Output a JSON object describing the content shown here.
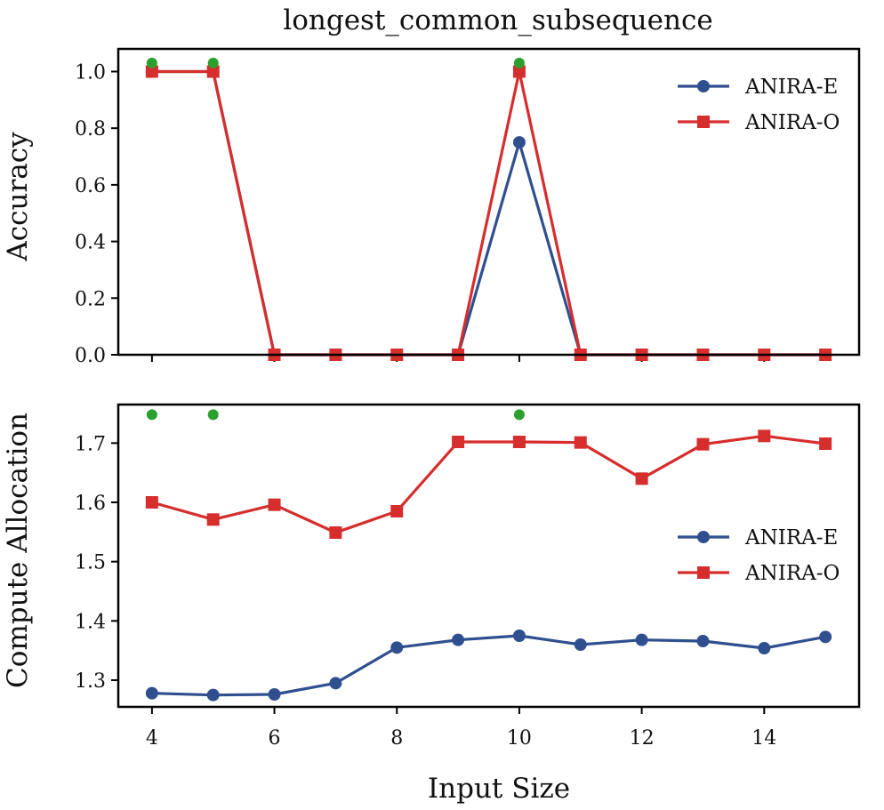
{
  "title": "longest_common_subsequence",
  "xlabel": "Input Size",
  "colors": {
    "anira_e": "#2f4f8f",
    "anira_o": "#d62d2d",
    "marker": "#2ca02c"
  },
  "chart_data": [
    {
      "type": "line",
      "title": "longest_common_subsequence",
      "xlabel": "",
      "ylabel": "Accuracy",
      "x": [
        4,
        5,
        6,
        7,
        8,
        9,
        10,
        11,
        12,
        13,
        14,
        15
      ],
      "xlim": [
        3.45,
        15.55
      ],
      "ylim": [
        0,
        1.08
      ],
      "xticks": [
        4,
        6,
        8,
        10,
        12,
        14
      ],
      "yticks": [
        0.0,
        0.2,
        0.4,
        0.6,
        0.8,
        1.0
      ],
      "ytick_labels": [
        "0.0",
        "0.2",
        "0.4",
        "0.6",
        "0.8",
        "1.0"
      ],
      "legend_loc": "top-right",
      "series": [
        {
          "name": "ANIRA-E",
          "marker": "circle",
          "values": [
            1.0,
            1.0,
            0.0,
            0.0,
            0.0,
            0.0,
            0.75,
            0.0,
            0.0,
            0.0,
            0.0,
            0.0
          ]
        },
        {
          "name": "ANIRA-O",
          "marker": "square",
          "values": [
            1.0,
            1.0,
            0.0,
            0.0,
            0.0,
            0.0,
            1.0,
            0.0,
            0.0,
            0.0,
            0.0,
            0.0
          ]
        }
      ],
      "highlight_points": {
        "x": [
          4,
          5,
          10
        ],
        "y": 1.03
      }
    },
    {
      "type": "line",
      "title": "",
      "xlabel": "Input Size",
      "ylabel": "Compute Allocation",
      "x": [
        4,
        5,
        6,
        7,
        8,
        9,
        10,
        11,
        12,
        13,
        14,
        15
      ],
      "xlim": [
        3.45,
        15.55
      ],
      "ylim": [
        1.255,
        1.765
      ],
      "xticks": [
        4,
        6,
        8,
        10,
        12,
        14
      ],
      "xtick_labels": [
        "4",
        "6",
        "8",
        "10",
        "12",
        "14"
      ],
      "yticks": [
        1.3,
        1.4,
        1.5,
        1.6,
        1.7
      ],
      "ytick_labels": [
        "1.3",
        "1.4",
        "1.5",
        "1.6",
        "1.7"
      ],
      "legend_loc": "center-right",
      "series": [
        {
          "name": "ANIRA-E",
          "marker": "circle",
          "values": [
            1.278,
            1.275,
            1.276,
            1.295,
            1.355,
            1.368,
            1.375,
            1.36,
            1.368,
            1.366,
            1.354,
            1.373
          ]
        },
        {
          "name": "ANIRA-O",
          "marker": "square",
          "values": [
            1.6,
            1.571,
            1.596,
            1.549,
            1.585,
            1.702,
            1.702,
            1.701,
            1.64,
            1.698,
            1.712,
            1.699
          ]
        }
      ],
      "highlight_points": {
        "x": [
          4,
          5,
          10
        ],
        "y": 1.748
      }
    }
  ]
}
